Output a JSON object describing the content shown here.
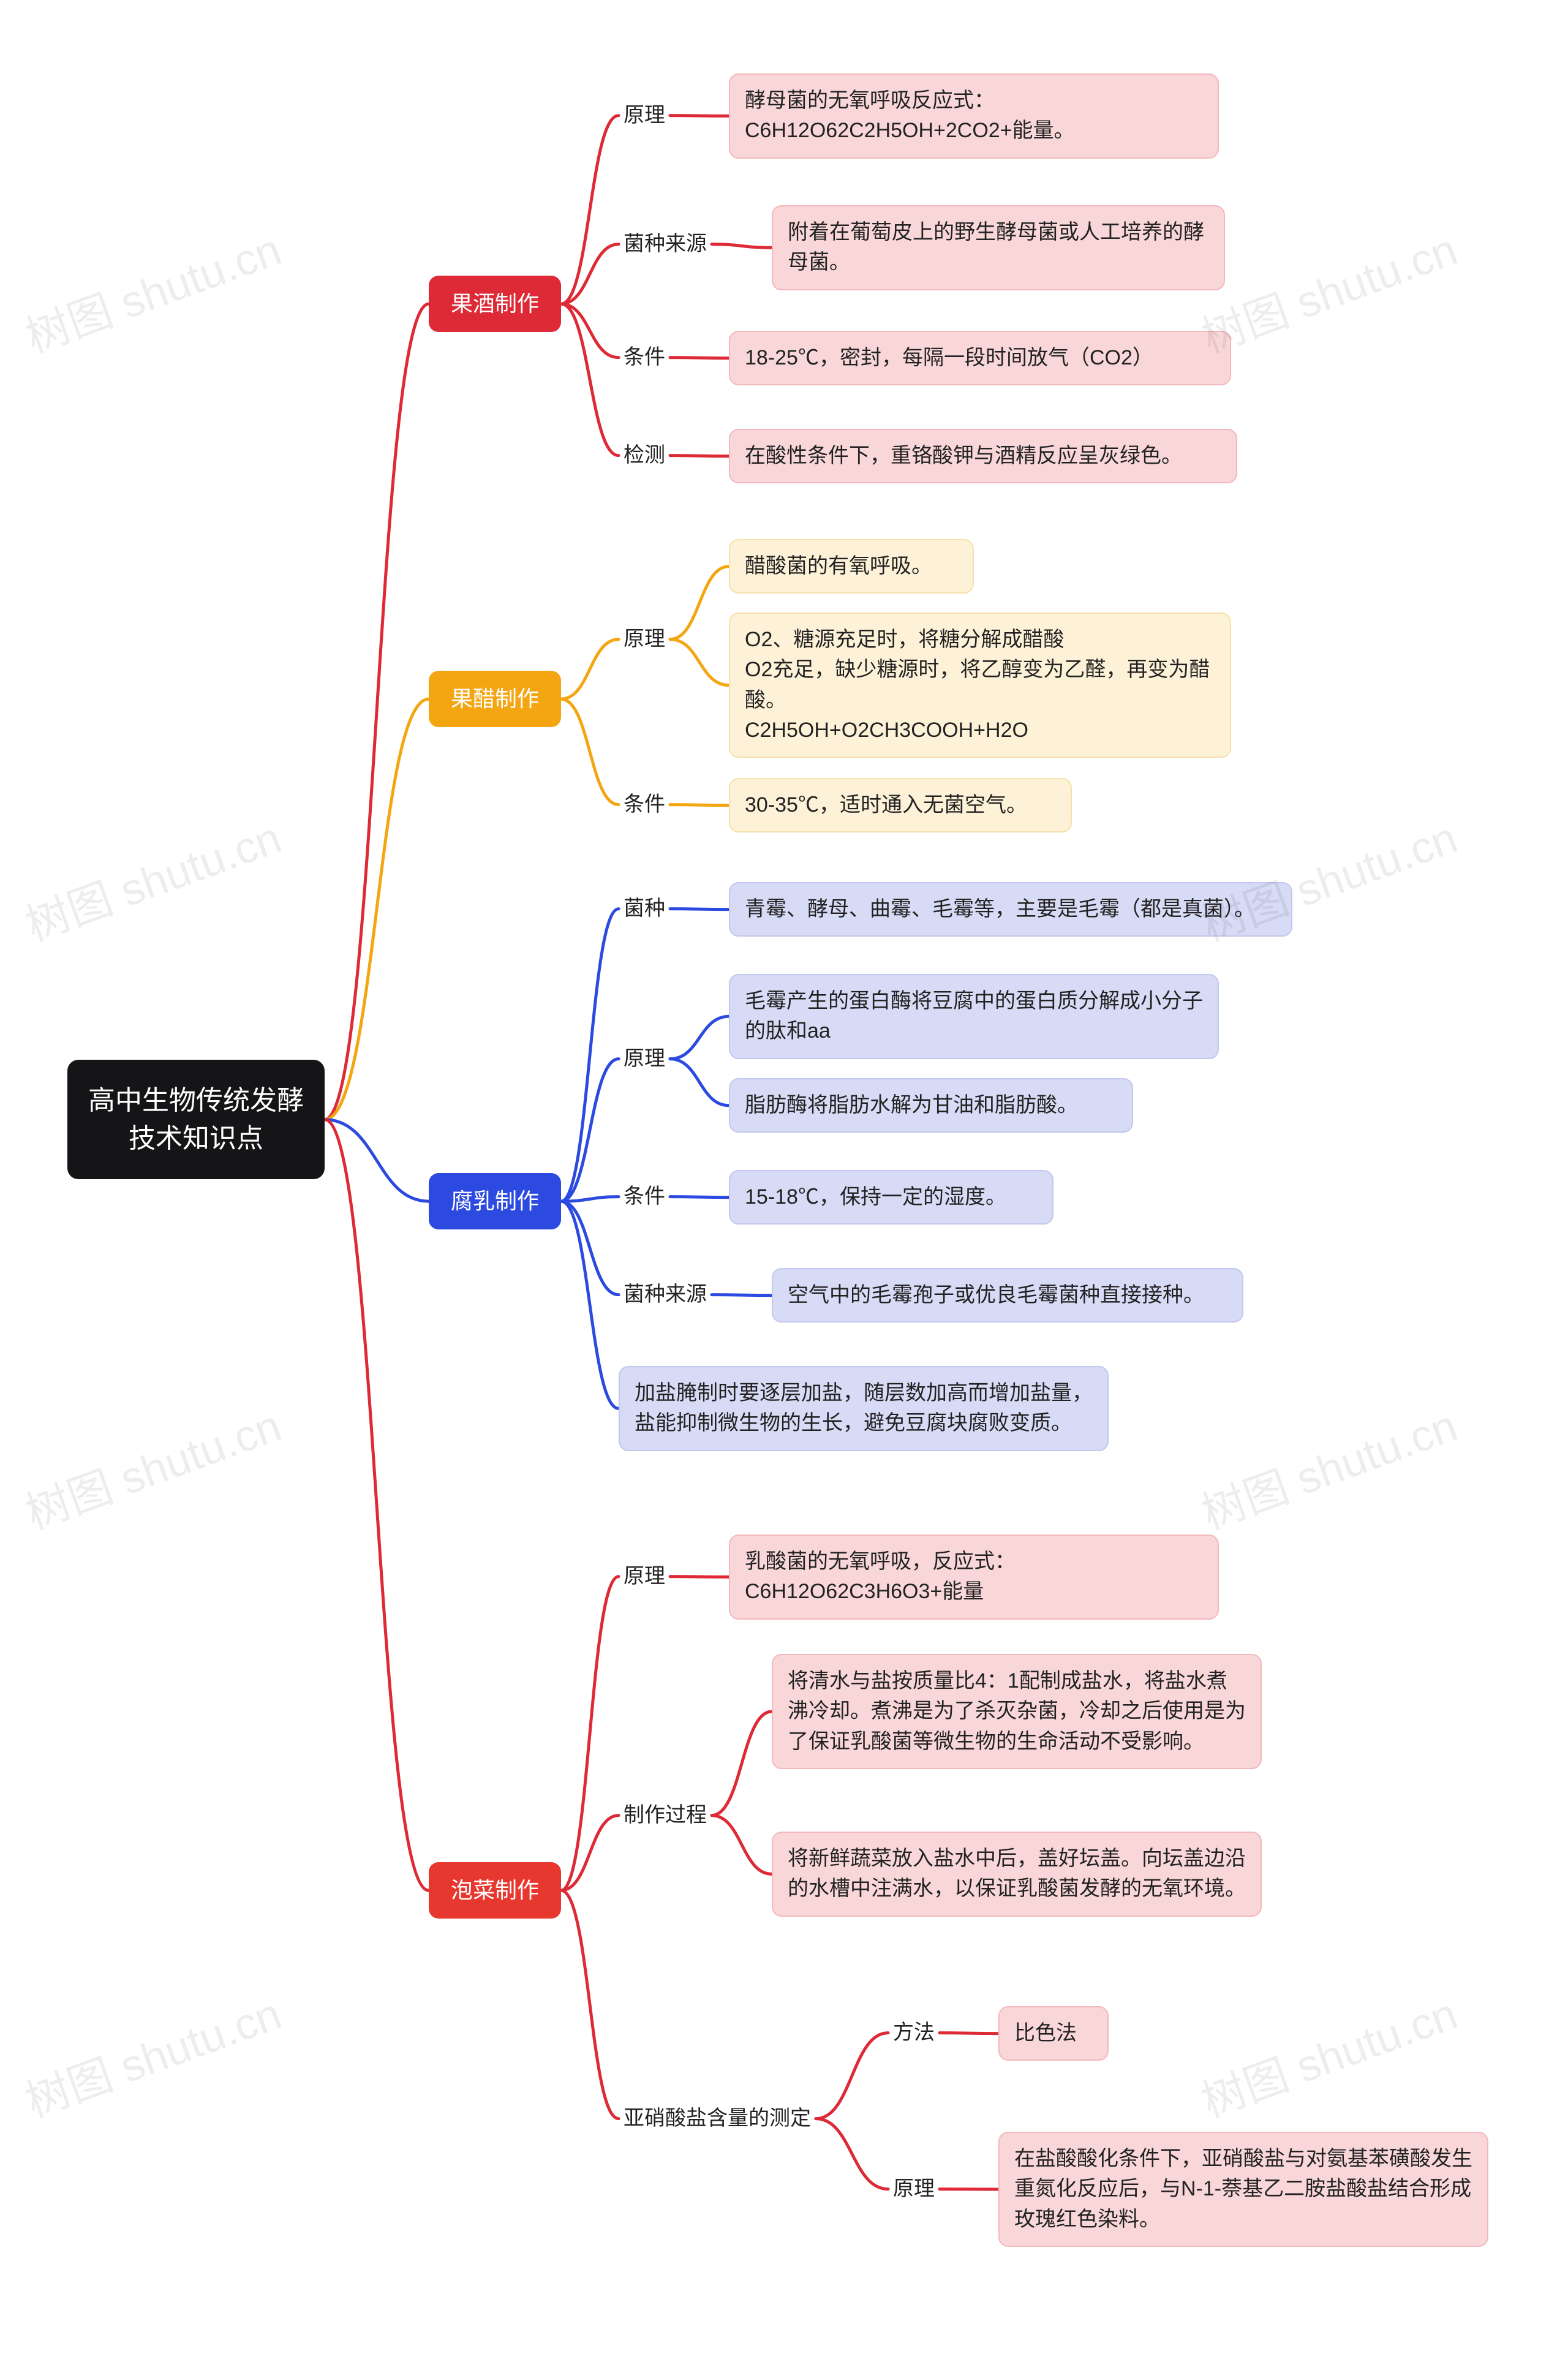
{
  "watermark_text": "树图 shutu.cn",
  "colors": {
    "root_bg": "#151517",
    "root_text": "#ffffff",
    "red_bg": "#dd2a36",
    "red_leaf_bg": "#f9d7d9",
    "red_leaf_border": "#f3b8bc",
    "red_stroke": "#dd2a36",
    "yellow_bg": "#f4a612",
    "yellow_leaf_bg": "#fdf2d7",
    "yellow_leaf_border": "#f7e0a8",
    "yellow_stroke": "#f4a612",
    "blue_bg": "#2c4ae0",
    "blue_leaf_bg": "#d8dbf6",
    "blue_leaf_border": "#c2c7ef",
    "blue_stroke": "#2c4ae0",
    "red2_bg": "#e6382e",
    "line_width": 5
  },
  "root": {
    "title": "高中生物传统发酵技术知识点"
  },
  "topics": {
    "wine": {
      "title": "果酒制作",
      "children": [
        {
          "label": "原理",
          "text": "酵母菌的无氧呼吸反应式：C6H12O62C2H5OH+2CO2+能量。"
        },
        {
          "label": "菌种来源",
          "text": "附着在葡萄皮上的野生酵母菌或人工培养的酵母菌。"
        },
        {
          "label": "条件",
          "text": "18-25℃，密封，每隔一段时间放气（CO2）"
        },
        {
          "label": "检测",
          "text": "在酸性条件下，重铬酸钾与酒精反应呈灰绿色。"
        }
      ]
    },
    "vinegar": {
      "title": "果醋制作",
      "children": [
        {
          "label": "原理",
          "texts": [
            "醋酸菌的有氧呼吸。",
            "O2、糖源充足时，将糖分解成醋酸\nO2充足，缺少糖源时，将乙醇变为乙醛，再变为醋酸。\nC2H5OH+O2CH3COOH+H2O"
          ]
        },
        {
          "label": "条件",
          "text": "30-35℃，适时通入无菌空气。"
        }
      ]
    },
    "furu": {
      "title": "腐乳制作",
      "children": [
        {
          "label": "菌种",
          "text": "青霉、酵母、曲霉、毛霉等，主要是毛霉（都是真菌）。"
        },
        {
          "label": "原理",
          "texts": [
            "毛霉产生的蛋白酶将豆腐中的蛋白质分解成小分子的肽和aa",
            "脂肪酶将脂肪水解为甘油和脂肪酸。"
          ]
        },
        {
          "label": "条件",
          "text": "15-18℃，保持一定的湿度。"
        },
        {
          "label": "菌种来源",
          "text": "空气中的毛霉孢子或优良毛霉菌种直接接种。"
        },
        {
          "label": "",
          "text": "加盐腌制时要逐层加盐，随层数加高而增加盐量，盐能抑制微生物的生长，避免豆腐块腐败变质。"
        }
      ]
    },
    "paocai": {
      "title": "泡菜制作",
      "children": [
        {
          "label": "原理",
          "text": "乳酸菌的无氧呼吸，反应式：C6H12O62C3H6O3+能量"
        },
        {
          "label": "制作过程",
          "texts": [
            "将清水与盐按质量比4：1配制成盐水，将盐水煮沸冷却。煮沸是为了杀灭杂菌，冷却之后使用是为了保证乳酸菌等微生物的生命活动不受影响。",
            "将新鲜蔬菜放入盐水中后，盖好坛盖。向坛盖边沿的水槽中注满水，以保证乳酸菌发酵的无氧环境。"
          ]
        },
        {
          "label": "亚硝酸盐含量的测定",
          "children": [
            {
              "label": "方法",
              "text": "比色法"
            },
            {
              "label": "原理",
              "text": "在盐酸酸化条件下，亚硝酸盐与对氨基苯磺酸发生重氮化反应后，与N-1-萘基乙二胺盐酸盐结合形成玫瑰红色染料。"
            }
          ]
        }
      ]
    }
  }
}
